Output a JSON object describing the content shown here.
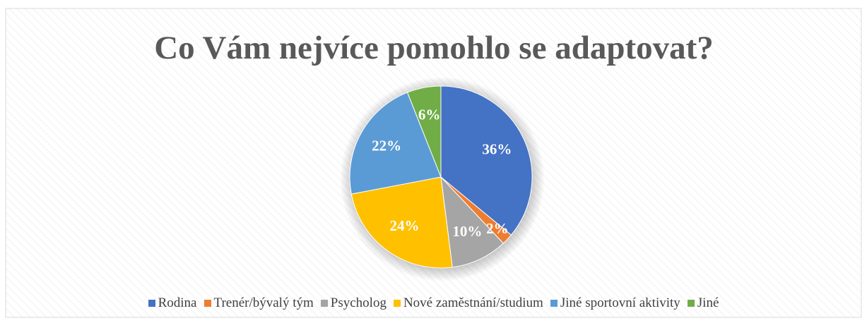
{
  "chart_data": {
    "type": "pie",
    "title": "Co Vám nejvíce pomohlo se adaptovat?",
    "categories": [
      "Rodina",
      "Trenér/bývalý tým",
      "Psycholog",
      "Nové zaměstnání/studium",
      "Jiné sportovní aktivity",
      "Jiné"
    ],
    "values": [
      36,
      2,
      10,
      24,
      22,
      6
    ],
    "value_labels": [
      "36%",
      "2%",
      "10%",
      "24%",
      "22%",
      "6%"
    ],
    "colors": [
      "#4472c4",
      "#ed7d31",
      "#a5a5a5",
      "#ffc000",
      "#5b9bd5",
      "#70ad47"
    ],
    "legend": "bottom"
  }
}
